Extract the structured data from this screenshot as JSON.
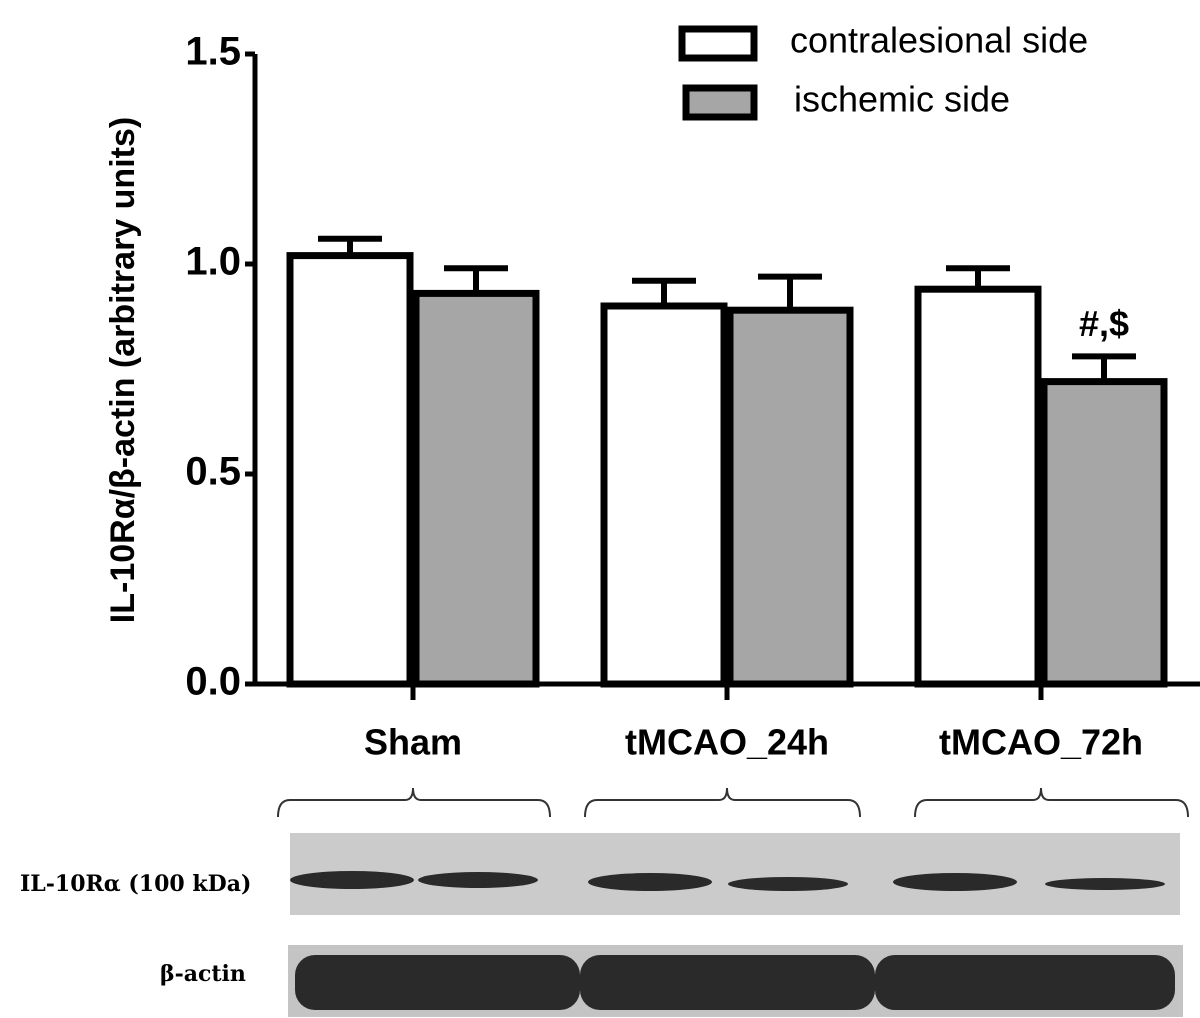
{
  "chart_data": {
    "type": "bar",
    "y_label": "IL-10Rα/β-actin (arbitrary units)",
    "categories": [
      "Sham",
      "tMCAO_24h",
      "tMCAO_72h"
    ],
    "series": [
      {
        "name": "contralesional side",
        "color": "#ffffff",
        "values": [
          1.02,
          0.9,
          0.94
        ],
        "errors": [
          0.04,
          0.06,
          0.05
        ]
      },
      {
        "name": "ischemic side",
        "color": "#a6a6a6",
        "values": [
          0.93,
          0.89,
          0.72
        ],
        "errors": [
          0.06,
          0.08,
          0.06
        ]
      }
    ],
    "annotation": "#,$",
    "ylim": [
      0,
      1.5
    ],
    "yticks": [
      {
        "value": 0,
        "label": "0.0"
      },
      0.5,
      {
        "value": 1,
        "label": "1.0"
      },
      1.5
    ],
    "blot_rows": [
      "IL-10Rα (100 kDa)",
      "β-actin"
    ]
  }
}
